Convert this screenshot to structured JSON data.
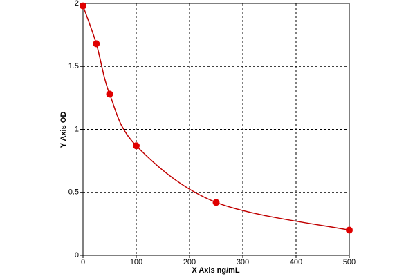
{
  "chart_data": {
    "type": "scatter",
    "x_label": "X Axis ng/mL",
    "y_label": "Y Axis OD",
    "x": [
      0,
      25,
      50,
      100,
      250,
      500
    ],
    "series": [
      {
        "color": "#e00000",
        "values": [
          1.98,
          1.68,
          1.28,
          0.87,
          0.42,
          0.2
        ]
      }
    ],
    "fit_color": "#c00000",
    "xlim": [
      0,
      500
    ],
    "xticks": [
      0,
      100,
      200,
      300,
      400,
      500
    ],
    "ylim": [
      0,
      2
    ],
    "yticks": [
      0,
      0.5,
      1,
      1.5,
      2
    ],
    "grid": true
  }
}
